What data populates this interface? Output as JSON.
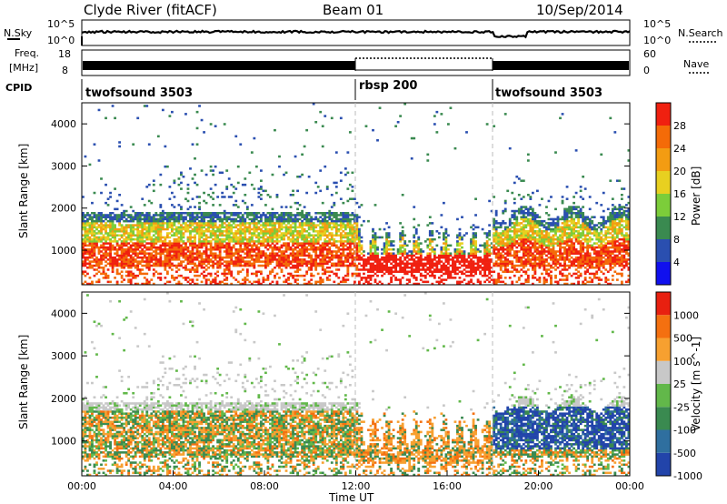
{
  "header": {
    "station": "Clyde River (fitACF)",
    "beam": "Beam 01",
    "date": "10/Sep/2014"
  },
  "noise_panel": {
    "left_label": "N.Sky",
    "left_ticks": [
      "10^5",
      "10^0"
    ],
    "right_ticks": [
      "10^5",
      "10^0"
    ],
    "right_label": "N.Search"
  },
  "freq_panel": {
    "left_label_1": "Freq.",
    "left_label_2": "[MHz]",
    "left_ticks": [
      "18",
      "8"
    ],
    "right_ticks": [
      "60",
      "0"
    ],
    "right_label": "Nave"
  },
  "cpid": {
    "label": "CPID",
    "segments": [
      {
        "name": "twofsound 3503",
        "start_hour": 0
      },
      {
        "name": "rbsp 200",
        "start_hour": 12
      },
      {
        "name": "twofsound 3503",
        "start_hour": 18
      }
    ]
  },
  "x_axis": {
    "title": "Time UT",
    "ticks": [
      "00:00",
      "04:00",
      "08:00",
      "12:00",
      "16:00",
      "20:00",
      "00:00"
    ],
    "range_hours": [
      0,
      24
    ]
  },
  "chart_data": [
    {
      "type": "heatmap",
      "panel": "power",
      "ylabel": "Slant Range [km]",
      "yticks": [
        1000,
        2000,
        3000,
        4000
      ],
      "ylim": [
        180,
        4500
      ],
      "colorbar": {
        "label": "Power [dB]",
        "ticks": [
          4,
          8,
          12,
          16,
          20,
          24,
          28
        ],
        "colors": [
          "#1010ee",
          "#2a4fb0",
          "#3a8a50",
          "#7ccd3a",
          "#e8d020",
          "#f39c12",
          "#f46b08",
          "#f02010"
        ]
      },
      "dominant_band_km": [
        600,
        1900
      ],
      "mode_change_hours": [
        12,
        18
      ]
    },
    {
      "type": "heatmap",
      "panel": "velocity",
      "ylabel": "Slant Range [km]",
      "yticks": [
        1000,
        2000,
        3000,
        4000
      ],
      "ylim": [
        180,
        4500
      ],
      "colorbar": {
        "label": "Velocity [m s^-1]",
        "ticks": [
          1000,
          500,
          100,
          25,
          -25,
          -100,
          -500,
          -1000
        ],
        "colors": [
          "#2244aa",
          "#2f6f9f",
          "#3a8a50",
          "#62b84a",
          "#c8c8c8",
          "#f7a030",
          "#f47010",
          "#e82010"
        ]
      },
      "dominant_band_km": [
        600,
        1900
      ],
      "mode_change_hours": [
        12,
        18
      ]
    }
  ]
}
